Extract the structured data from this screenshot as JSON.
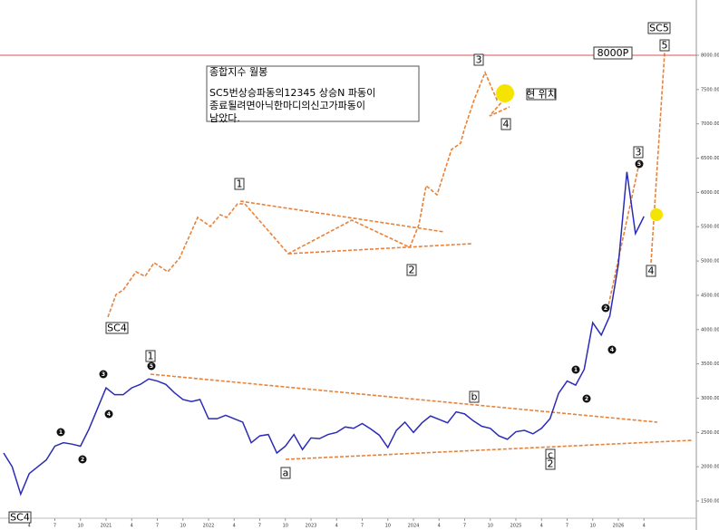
{
  "chart_data": {
    "type": "line",
    "categories": [
      null,
      null,
      null,
      "4",
      null,
      null,
      "7",
      null,
      null,
      "10",
      null,
      null,
      "2021",
      null,
      null,
      "4",
      null,
      null,
      "7",
      null,
      null,
      "10",
      null,
      null,
      "2022",
      null,
      null,
      "4",
      null,
      null,
      "7",
      null,
      null,
      "10",
      null,
      null,
      "2023",
      null,
      null,
      "4",
      null,
      null,
      "7",
      null,
      null,
      "10",
      null,
      null,
      "2024",
      null,
      null,
      "4",
      null,
      null,
      "7",
      null,
      null,
      "10",
      null,
      null,
      "2025",
      null,
      null,
      "4",
      null,
      null,
      "7",
      null,
      null,
      "10",
      null,
      null,
      "2026",
      null,
      null,
      "4"
    ],
    "series": [
      {
        "color": "#2b2bb8",
        "values": [
          2200,
          2000,
          1600,
          1900,
          2000,
          2100,
          2300,
          2350,
          2330,
          2300,
          2550,
          2850,
          3150,
          3050,
          3050,
          3150,
          3200,
          3280,
          3250,
          3200,
          3080,
          2980,
          2950,
          2980,
          2700,
          2700,
          2750,
          2700,
          2650,
          2350,
          2450,
          2470,
          2200,
          2300,
          2470,
          2250,
          2420,
          2410,
          2470,
          2500,
          2580,
          2560,
          2630,
          2550,
          2460,
          2280,
          2530,
          2650,
          2500,
          2640,
          2740,
          2690,
          2640,
          2800,
          2770,
          2670,
          2590,
          2560,
          2450,
          2400,
          2510,
          2530,
          2480,
          2560,
          2700,
          3070,
          3250,
          3190,
          3420,
          4100,
          3920,
          4200,
          4950,
          6300,
          5400,
          5650
        ]
      }
    ],
    "ylim": [
      1250,
      8500
    ],
    "yticks": [
      {
        "value": 1500,
        "label": "1500.00"
      },
      {
        "value": 2000,
        "label": "2000.00"
      },
      {
        "value": 2500,
        "label": "2500.00"
      },
      {
        "value": 3000,
        "label": "3000.00"
      },
      {
        "value": 3500,
        "label": "3500.00"
      },
      {
        "value": 4000,
        "label": "4000.00"
      },
      {
        "value": 4500,
        "label": "4500.00"
      },
      {
        "value": 5000,
        "label": "5000.00"
      },
      {
        "value": 5500,
        "label": "5500.00"
      },
      {
        "value": 6000,
        "label": "6000.00"
      },
      {
        "value": 6500,
        "label": "6500.00"
      },
      {
        "value": 7000,
        "label": "7000.00"
      },
      {
        "value": 7500,
        "label": "7500.00"
      },
      {
        "value": 8000,
        "label": "8000.00"
      }
    ],
    "reference_line": {
      "value": 8000,
      "label": "8000P",
      "color": "#d9534f"
    },
    "note": {
      "title": "종합지수 월봉",
      "lines": [
        "SC5번상승파동의12345 상승N 파동이",
        "종료될려면아닉한마디의신고가파동이",
        "남았다."
      ]
    },
    "box_labels": [
      "SC5",
      "5",
      "3",
      "현 위치",
      "4",
      "1",
      "2",
      "SC4",
      "1",
      "b",
      "a",
      "c",
      "2",
      "3",
      "4",
      "SC4"
    ],
    "wave_marks": [
      "1",
      "2",
      "3",
      "4",
      "5",
      "1",
      "2",
      "2",
      "4",
      "5"
    ]
  }
}
